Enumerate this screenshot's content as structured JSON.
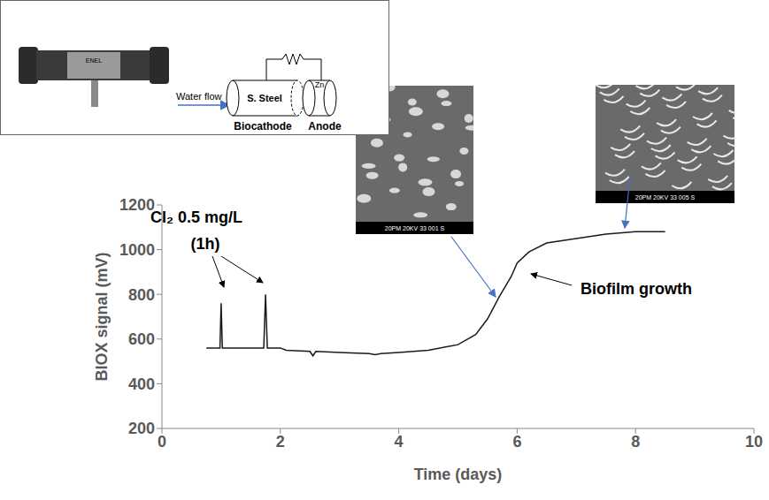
{
  "chart_data": {
    "type": "line",
    "x_label": "Time (days)",
    "y_label": "BIOX signal (mV)",
    "xlim": [
      0,
      10
    ],
    "xticks": [
      0,
      2,
      4,
      6,
      8,
      10
    ],
    "ylim": [
      200,
      1200
    ],
    "yticks": [
      200,
      400,
      600,
      800,
      1000,
      1200
    ],
    "grid": false,
    "color": "#1a1a1a",
    "x": [
      0.75,
      0.98,
      1.0,
      1.02,
      1.72,
      1.75,
      1.78,
      2.0,
      2.1,
      2.5,
      2.55,
      2.6,
      3.0,
      3.5,
      3.6,
      3.7,
      4.0,
      4.5,
      5.0,
      5.3,
      5.5,
      5.7,
      5.9,
      6.0,
      6.2,
      6.5,
      7.0,
      7.5,
      8.0,
      8.5
    ],
    "values": [
      560,
      560,
      760,
      560,
      560,
      800,
      560,
      560,
      550,
      545,
      525,
      545,
      540,
      535,
      530,
      535,
      540,
      550,
      575,
      620,
      690,
      790,
      880,
      940,
      990,
      1030,
      1050,
      1070,
      1080,
      1080
    ],
    "annotations": [
      "Cl₂ 0.5 mg/L",
      "(1h)",
      "Biofilm growth"
    ],
    "inset": {
      "water_flow": "Water flow",
      "cathode": "S. Steel",
      "anode_metal": "Zn",
      "cathode_label": "Biocathode",
      "anode_label": "Anode",
      "device_label": "ENEL"
    },
    "sem_captions": [
      "20PM 20KV 33 001 S",
      "20PM 20KV 33 005 S"
    ]
  }
}
